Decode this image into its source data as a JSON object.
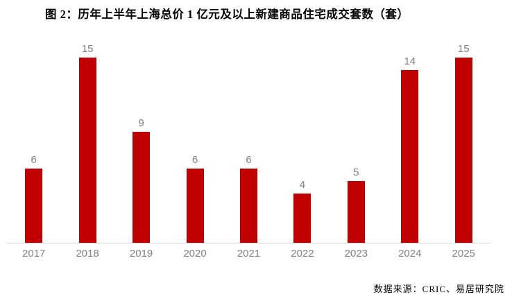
{
  "header": {
    "title": "图 2：历年上半年上海总价 1 亿元及以上新建商品住宅成交套数（套）"
  },
  "chart_data": {
    "type": "bar",
    "title": "图 2：历年上半年上海总价 1 亿元及以上新建商品住宅成交套数（套）",
    "categories": [
      "2017",
      "2018",
      "2019",
      "2020",
      "2021",
      "2022",
      "2023",
      "2024",
      "2025"
    ],
    "values": [
      6,
      15,
      9,
      6,
      6,
      4,
      5,
      14,
      15
    ],
    "xlabel": "",
    "ylabel": "",
    "ylim": [
      0,
      15
    ],
    "grid": false,
    "legend": "none",
    "data_labels": true,
    "bar_color": "#C00000",
    "label_color": "#808080",
    "axis_line_color": "#D9D9D9"
  },
  "footer": {
    "source": "数据来源：CRIC、易居研究院"
  }
}
